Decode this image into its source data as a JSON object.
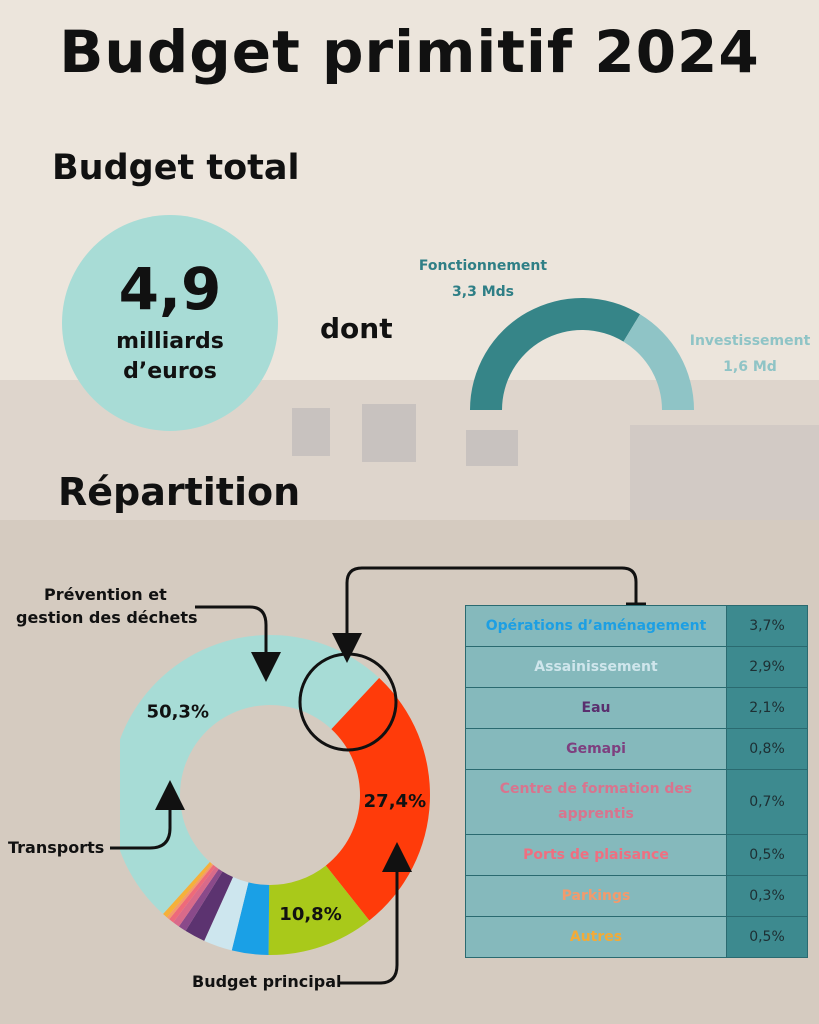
{
  "title": "Budget primitif 2024",
  "total": {
    "label": "Budget total",
    "value": "4,9",
    "unit_line1": "milliards",
    "unit_line2": "d’euros",
    "connector": "dont"
  },
  "split": {
    "fonctionnement": {
      "name": "Fonctionnement",
      "value_label": "3,3 Mds",
      "value": 3.3,
      "color": "#368588"
    },
    "investissement": {
      "name": "Investissement",
      "value_label": "1,6 Md",
      "value": 1.6,
      "color": "#8fc4c6"
    }
  },
  "repartition": {
    "title": "Répartition",
    "callouts": {
      "prevention_line1": "Prévention et",
      "prevention_line2": "gestion des déchets",
      "transports": "Transports",
      "budget_principal": "Budget principal"
    }
  },
  "chart_data": {
    "type": "pie",
    "slices": [
      {
        "name": "Budget principal",
        "value": 50.3,
        "label": "50,3%",
        "color": "#a7dcd6"
      },
      {
        "name": "Transports",
        "value": 27.4,
        "label": "27,4%",
        "color": "#ff3b0a"
      },
      {
        "name": "Prévention et gestion des déchets",
        "value": 10.8,
        "label": "10,8%",
        "color": "#a9c91a"
      },
      {
        "name": "Opérations d’aménagement",
        "value": 3.7,
        "label": "3,7%",
        "color": "#1aa0e6"
      },
      {
        "name": "Assainissement",
        "value": 2.9,
        "label": "2,9%",
        "color": "#cde6ee"
      },
      {
        "name": "Eau",
        "value": 2.1,
        "label": "2,1%",
        "color": "#5c3370"
      },
      {
        "name": "Gemapi",
        "value": 0.8,
        "label": "0,8%",
        "color": "#8a4a8a"
      },
      {
        "name": "Centre de formation des apprentis",
        "value": 0.7,
        "label": "0,7%",
        "color": "#d96a8a"
      },
      {
        "name": "Ports de plaisance",
        "value": 0.5,
        "label": "0,5%",
        "color": "#ee6a7a"
      },
      {
        "name": "Parkings",
        "value": 0.3,
        "label": "0,3%",
        "color": "#f59a6a"
      },
      {
        "name": "Autres",
        "value": 0.5,
        "label": "0,5%",
        "color": "#f5b03a"
      }
    ],
    "table": [
      {
        "name": "Opérations d’aménagement",
        "label": "3,7%",
        "color": "#1d9fe3"
      },
      {
        "name": "Assainissement",
        "label": "2,9%",
        "color": "#cfe6ec"
      },
      {
        "name": "Eau",
        "label": "2,1%",
        "color": "#5a2f6e"
      },
      {
        "name": "Gemapi",
        "label": "0,8%",
        "color": "#7e3f7f"
      },
      {
        "name": "Centre de formation des apprentis",
        "label": "0,7%",
        "color": "#d8748e"
      },
      {
        "name": "Ports de plaisance",
        "label": "0,5%",
        "color": "#ef6f80"
      },
      {
        "name": "Parkings",
        "label": "0,3%",
        "color": "#f39a6c"
      },
      {
        "name": "Autres",
        "label": "0,5%",
        "color": "#f2ab38"
      }
    ]
  }
}
